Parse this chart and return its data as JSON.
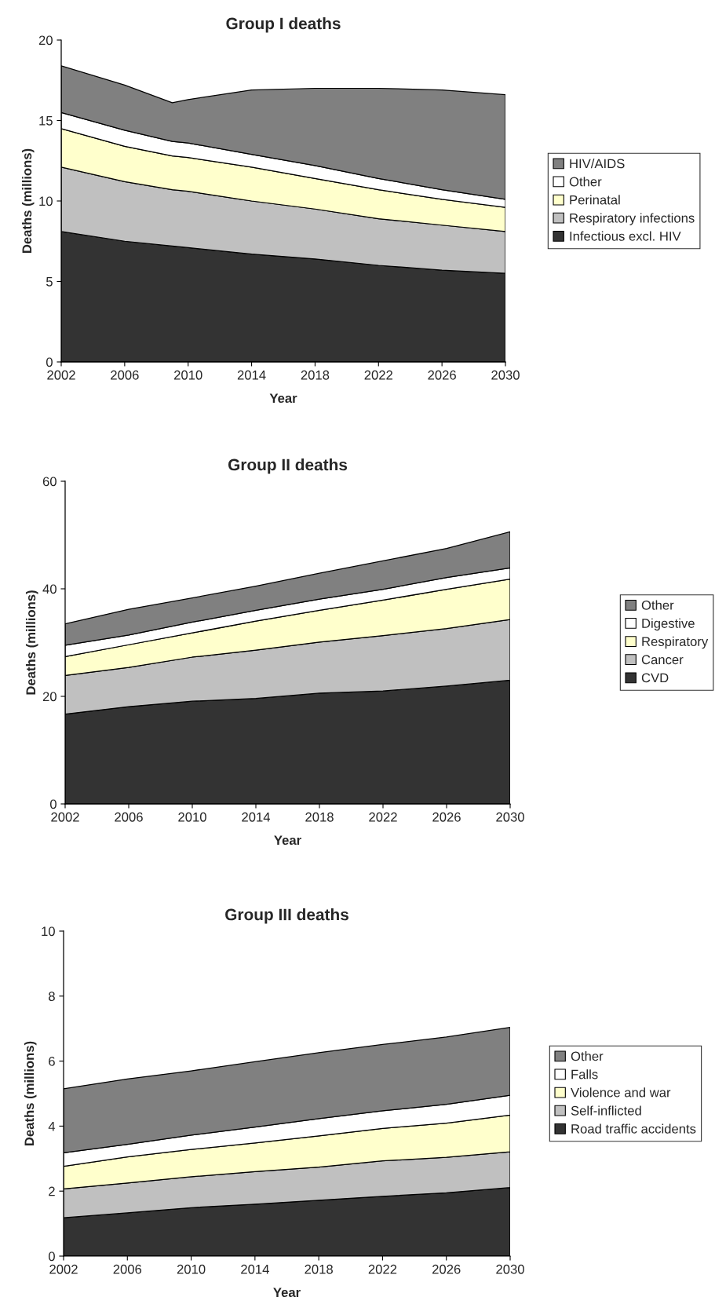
{
  "chart_data": [
    {
      "type": "area",
      "stacked": true,
      "title": "Group I deaths",
      "xlabel": "Year",
      "ylabel": "Deaths (millions)",
      "x": [
        2002,
        2006,
        2009,
        2010,
        2014,
        2018,
        2022,
        2026,
        2030
      ],
      "xlim": [
        2002,
        2030
      ],
      "xticks": [
        2002,
        2006,
        2010,
        2014,
        2018,
        2022,
        2026,
        2030
      ],
      "ylim": [
        0,
        20
      ],
      "yticks": [
        0,
        5,
        10,
        15,
        20
      ],
      "legend": "right",
      "series": [
        {
          "name": "Infectious excl. HIV",
          "color": "#333333",
          "values": [
            8.1,
            7.5,
            7.2,
            7.1,
            6.7,
            6.4,
            6.0,
            5.7,
            5.5
          ]
        },
        {
          "name": "Respiratory infections",
          "color": "#c0c0c0",
          "values": [
            4.0,
            3.7,
            3.5,
            3.5,
            3.3,
            3.1,
            2.9,
            2.8,
            2.6
          ]
        },
        {
          "name": "Perinatal",
          "color": "#ffffcc",
          "values": [
            2.4,
            2.2,
            2.1,
            2.1,
            2.1,
            1.9,
            1.8,
            1.6,
            1.5
          ]
        },
        {
          "name": "Other",
          "color": "#ffffff",
          "values": [
            1.0,
            1.0,
            0.9,
            0.9,
            0.8,
            0.8,
            0.7,
            0.6,
            0.5
          ]
        },
        {
          "name": "HIV/AIDS",
          "color": "#808080",
          "values": [
            2.9,
            2.8,
            2.4,
            2.7,
            4.0,
            4.8,
            5.6,
            6.2,
            6.5
          ]
        }
      ]
    },
    {
      "type": "area",
      "stacked": true,
      "title": "Group II deaths",
      "xlabel": "Year",
      "ylabel": "Deaths (millions)",
      "x": [
        2002,
        2006,
        2010,
        2014,
        2018,
        2022,
        2026,
        2030
      ],
      "xlim": [
        2002,
        2030
      ],
      "xticks": [
        2002,
        2006,
        2010,
        2014,
        2018,
        2022,
        2026,
        2030
      ],
      "ylim": [
        0,
        60
      ],
      "yticks": [
        0,
        20,
        40,
        60
      ],
      "legend": "right",
      "series": [
        {
          "name": "CVD",
          "color": "#333333",
          "values": [
            16.7,
            18.1,
            19.1,
            19.6,
            20.6,
            21.0,
            21.9,
            23.0
          ]
        },
        {
          "name": "Cancer",
          "color": "#c0c0c0",
          "values": [
            7.2,
            7.3,
            8.2,
            9.0,
            9.5,
            10.3,
            10.7,
            11.3
          ]
        },
        {
          "name": "Respiratory",
          "color": "#ffffcc",
          "values": [
            3.5,
            4.2,
            4.5,
            5.4,
            5.9,
            6.6,
            7.3,
            7.5
          ]
        },
        {
          "name": "Digestive",
          "color": "#ffffff",
          "values": [
            2.1,
            1.8,
            2.0,
            2.0,
            2.1,
            2.0,
            2.2,
            2.1
          ]
        },
        {
          "name": "Other",
          "color": "#808080",
          "values": [
            4.0,
            4.8,
            4.5,
            4.5,
            4.8,
            5.3,
            5.4,
            6.7
          ]
        }
      ]
    },
    {
      "type": "area",
      "stacked": true,
      "title": "Group III deaths",
      "xlabel": "Year",
      "ylabel": "Deaths (millions)",
      "x": [
        2002,
        2006,
        2010,
        2014,
        2018,
        2022,
        2026,
        2030
      ],
      "xlim": [
        2002,
        2030
      ],
      "xticks": [
        2002,
        2006,
        2010,
        2014,
        2018,
        2022,
        2026,
        2030
      ],
      "ylim": [
        0,
        10
      ],
      "yticks": [
        0,
        2,
        4,
        6,
        8,
        10
      ],
      "legend": "right",
      "series": [
        {
          "name": "Road traffic accidents",
          "color": "#333333",
          "values": [
            1.18,
            1.33,
            1.49,
            1.6,
            1.72,
            1.84,
            1.95,
            2.11
          ]
        },
        {
          "name": "Self-inflicted",
          "color": "#c0c0c0",
          "values": [
            0.89,
            0.92,
            0.95,
            1.0,
            1.02,
            1.09,
            1.09,
            1.1
          ]
        },
        {
          "name": "Violence and war",
          "color": "#ffffcc",
          "values": [
            0.69,
            0.8,
            0.84,
            0.88,
            0.96,
            1.0,
            1.05,
            1.13
          ]
        },
        {
          "name": "Falls",
          "color": "#ffffff",
          "values": [
            0.42,
            0.39,
            0.44,
            0.49,
            0.53,
            0.54,
            0.58,
            0.61
          ]
        },
        {
          "name": "Other",
          "color": "#808080",
          "values": [
            1.97,
            2.01,
            1.98,
            2.01,
            2.03,
            2.04,
            2.07,
            2.09
          ]
        }
      ]
    }
  ]
}
